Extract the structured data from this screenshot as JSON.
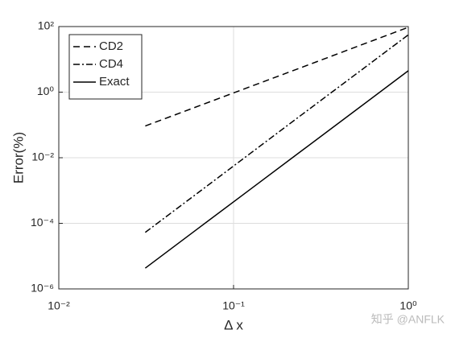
{
  "chart_data": {
    "type": "line",
    "x_label": "Δ x",
    "y_label": "Error(%)",
    "x": [
      0.03125,
      0.0625,
      0.125,
      0.25,
      0.5,
      1
    ],
    "series": [
      {
        "name": "CD2",
        "color": "#000000",
        "dash": "dashed",
        "values": [
          0.093,
          0.37,
          1.48,
          5.9,
          23.8,
          95
        ]
      },
      {
        "name": "CD4",
        "color": "#000000",
        "dash": "dashdot",
        "values": [
          5.3e-05,
          0.00085,
          0.0137,
          0.22,
          3.5,
          56
        ]
      },
      {
        "name": "Exact",
        "color": "#000000",
        "dash": "solid",
        "values": [
          4.3e-06,
          6.9e-05,
          0.0011,
          0.0176,
          0.28,
          4.5
        ]
      }
    ],
    "xlog": true,
    "ylog": true,
    "xlim": [
      0.01,
      1
    ],
    "ylim": [
      1e-06,
      100
    ],
    "xticks": [
      {
        "value": 0.01,
        "label": "10⁻²"
      },
      {
        "value": 0.1,
        "label": "10⁻¹"
      },
      {
        "value": 1,
        "label": "10⁰"
      }
    ],
    "yticks": [
      {
        "value": 1e-06,
        "label": "10⁻⁶"
      },
      {
        "value": 0.0001,
        "label": "10⁻⁴"
      },
      {
        "value": 0.01,
        "label": "10⁻²"
      },
      {
        "value": 1,
        "label": "10⁰"
      },
      {
        "value": 100,
        "label": "10²"
      }
    ],
    "grid": true,
    "legend": "upper left",
    "watermark": "知乎 @ANFLK"
  }
}
